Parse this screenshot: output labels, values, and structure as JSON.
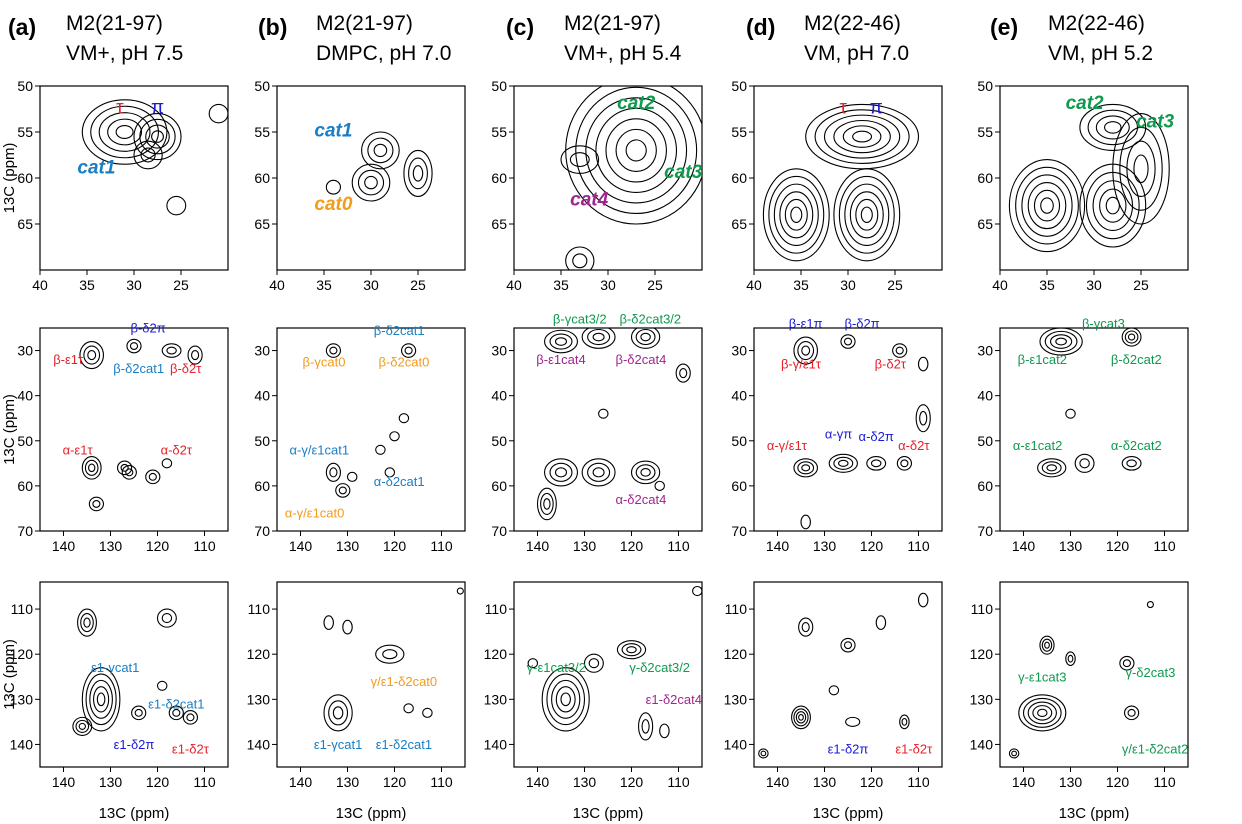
{
  "colors": {
    "red": "#e8202a",
    "blue": "#1a1ad6",
    "cyan": "#1a7ec4",
    "green": "#0f9a4e",
    "orange": "#f29b1c",
    "magenta": "#a0268f",
    "black": "#000000"
  },
  "columns": [
    {
      "letter": "(a)",
      "line1": "M2(21-97)",
      "line2": "VM+, pH 7.5"
    },
    {
      "letter": "(b)",
      "line1": "M2(21-97)",
      "line2": "DMPC, pH 7.0"
    },
    {
      "letter": "(c)",
      "line1": "M2(21-97)",
      "line2": "VM+, pH 5.4"
    },
    {
      "letter": "(d)",
      "line1": "M2(22-46)",
      "line2": "VM, pH 7.0"
    },
    {
      "letter": "(e)",
      "line1": "M2(22-46)",
      "line2": "VM, pH 5.2"
    }
  ],
  "axis_labels": {
    "y": "13C (ppm)",
    "x": "13C (ppm)"
  },
  "chart_data": [
    {
      "type": "heatmap",
      "panel": "top",
      "x_axis": {
        "ticks": [
          40,
          35,
          30,
          25
        ],
        "lim": [
          40,
          20
        ]
      },
      "y_axis": {
        "ticks": [
          50,
          55,
          60,
          65
        ],
        "lim": [
          50,
          70
        ]
      },
      "labels": [
        {
          "col": 0,
          "items": [
            {
              "t": "τ",
              "c": "red",
              "x": 31.5,
              "y": 53
            },
            {
              "t": "π",
              "c": "blue",
              "x": 27.5,
              "y": 53
            },
            {
              "t": "cat1",
              "c": "cyan",
              "x": 34,
              "y": 59.5
            }
          ]
        },
        {
          "col": 1,
          "items": [
            {
              "t": "cat1",
              "c": "cyan",
              "x": 34,
              "y": 55.5
            },
            {
              "t": "cat0",
              "c": "orange",
              "x": 34,
              "y": 63.5
            }
          ]
        },
        {
          "col": 2,
          "items": [
            {
              "t": "cat2",
              "c": "green",
              "x": 27,
              "y": 52.5
            },
            {
              "t": "cat3",
              "c": "green",
              "x": 22,
              "y": 60
            },
            {
              "t": "cat4",
              "c": "magenta",
              "x": 32,
              "y": 63
            }
          ]
        },
        {
          "col": 3,
          "items": [
            {
              "t": "τ",
              "c": "red",
              "x": 30.5,
              "y": 53
            },
            {
              "t": "π",
              "c": "blue",
              "x": 27,
              "y": 53
            }
          ]
        },
        {
          "col": 4,
          "items": [
            {
              "t": "cat2",
              "c": "green",
              "x": 31,
              "y": 52.5
            },
            {
              "t": "cat3",
              "c": "green",
              "x": 23.5,
              "y": 54.5
            }
          ]
        }
      ]
    },
    {
      "type": "heatmap",
      "panel": "middle",
      "x_axis": {
        "ticks": [
          140,
          130,
          120,
          110
        ],
        "lim": [
          145,
          105
        ]
      },
      "y_axis": {
        "ticks": [
          30,
          40,
          50,
          60,
          70
        ],
        "lim": [
          25,
          70
        ]
      },
      "labels": [
        {
          "col": 0,
          "items": [
            {
              "t": "β-δ2π",
              "c": "blue",
              "x": 122,
              "y": 26
            },
            {
              "t": "β-ε1τ",
              "c": "red",
              "x": 139,
              "y": 33
            },
            {
              "t": "β-δ2cat1",
              "c": "cyan",
              "x": 124,
              "y": 35
            },
            {
              "t": "β-δ2τ",
              "c": "red",
              "x": 114,
              "y": 35
            },
            {
              "t": "α-ε1τ",
              "c": "red",
              "x": 137,
              "y": 53
            },
            {
              "t": "α-δ2τ",
              "c": "red",
              "x": 116,
              "y": 53
            }
          ]
        },
        {
          "col": 1,
          "items": [
            {
              "t": "β-δ2cat1",
              "c": "cyan",
              "x": 119,
              "y": 26.5
            },
            {
              "t": "β-γcat0",
              "c": "orange",
              "x": 135,
              "y": 33.5
            },
            {
              "t": "β-δ2cat0",
              "c": "orange",
              "x": 118,
              "y": 33.5
            },
            {
              "t": "α-γ/ε1cat1",
              "c": "cyan",
              "x": 136,
              "y": 53
            },
            {
              "t": "α-δ2cat1",
              "c": "cyan",
              "x": 119,
              "y": 60
            },
            {
              "t": "α-γ/ε1cat0",
              "c": "orange",
              "x": 137,
              "y": 67
            }
          ]
        },
        {
          "col": 2,
          "items": [
            {
              "t": "β-γcat3/2",
              "c": "green",
              "x": 131,
              "y": 24
            },
            {
              "t": "β-δ2cat3/2",
              "c": "green",
              "x": 116,
              "y": 24
            },
            {
              "t": "β-ε1cat4",
              "c": "magenta",
              "x": 135,
              "y": 33
            },
            {
              "t": "β-δ2cat4",
              "c": "magenta",
              "x": 118,
              "y": 33
            },
            {
              "t": "α-δ2cat4",
              "c": "magenta",
              "x": 118,
              "y": 64
            }
          ]
        },
        {
          "col": 3,
          "items": [
            {
              "t": "β-ε1π",
              "c": "blue",
              "x": 134,
              "y": 25
            },
            {
              "t": "β-δ2π",
              "c": "blue",
              "x": 122,
              "y": 25
            },
            {
              "t": "β-γ/ε1τ",
              "c": "red",
              "x": 135,
              "y": 34
            },
            {
              "t": "β-δ2τ",
              "c": "red",
              "x": 116,
              "y": 34
            },
            {
              "t": "α-γ/ε1τ",
              "c": "red",
              "x": 138,
              "y": 52
            },
            {
              "t": "α-γπ",
              "c": "blue",
              "x": 127,
              "y": 49.5
            },
            {
              "t": "α-δ2π",
              "c": "blue",
              "x": 119,
              "y": 50
            },
            {
              "t": "α-δ2τ",
              "c": "red",
              "x": 111,
              "y": 52
            }
          ]
        },
        {
          "col": 4,
          "items": [
            {
              "t": "β-γcat3",
              "c": "green",
              "x": 123,
              "y": 25
            },
            {
              "t": "β-ε1cat2",
              "c": "green",
              "x": 136,
              "y": 33
            },
            {
              "t": "β-δ2cat2",
              "c": "green",
              "x": 116,
              "y": 33
            },
            {
              "t": "α-ε1cat2",
              "c": "green",
              "x": 137,
              "y": 52
            },
            {
              "t": "α-δ2cat2",
              "c": "green",
              "x": 116,
              "y": 52
            }
          ]
        }
      ]
    },
    {
      "type": "heatmap",
      "panel": "bottom",
      "x_axis": {
        "ticks": [
          140,
          130,
          120,
          110
        ],
        "lim": [
          145,
          105
        ]
      },
      "y_axis": {
        "ticks": [
          110,
          120,
          130,
          140
        ],
        "lim": [
          104,
          145
        ]
      },
      "labels": [
        {
          "col": 0,
          "items": [
            {
              "t": "ε1-γcat1",
              "c": "cyan",
              "x": 129,
              "y": 124
            },
            {
              "t": "ε1-δ2cat1",
              "c": "cyan",
              "x": 116,
              "y": 132
            },
            {
              "t": "ε1-δ2π",
              "c": "blue",
              "x": 125,
              "y": 141
            },
            {
              "t": "ε1-δ2τ",
              "c": "red",
              "x": 113,
              "y": 142
            }
          ]
        },
        {
          "col": 1,
          "items": [
            {
              "t": "γ/ε1-δ2cat0",
              "c": "orange",
              "x": 118,
              "y": 127
            },
            {
              "t": "ε1-γcat1",
              "c": "cyan",
              "x": 132,
              "y": 141
            },
            {
              "t": "ε1-δ2cat1",
              "c": "cyan",
              "x": 118,
              "y": 141
            }
          ]
        },
        {
          "col": 2,
          "items": [
            {
              "t": "γ-ε1cat3/2",
              "c": "green",
              "x": 136,
              "y": 124
            },
            {
              "t": "γ-δ2cat3/2",
              "c": "green",
              "x": 114,
              "y": 124
            },
            {
              "t": "ε1-δ2cat4",
              "c": "magenta",
              "x": 111,
              "y": 131
            }
          ]
        },
        {
          "col": 3,
          "items": [
            {
              "t": "ε1-δ2π",
              "c": "blue",
              "x": 125,
              "y": 142
            },
            {
              "t": "ε1-δ2τ",
              "c": "red",
              "x": 111,
              "y": 142
            }
          ]
        },
        {
          "col": 4,
          "items": [
            {
              "t": "γ-ε1cat3",
              "c": "green",
              "x": 136,
              "y": 126
            },
            {
              "t": "γ-δ2cat3",
              "c": "green",
              "x": 113,
              "y": 125
            },
            {
              "t": "γ/ε1-δ2cat2",
              "c": "green",
              "x": 112,
              "y": 142
            }
          ]
        }
      ]
    }
  ]
}
